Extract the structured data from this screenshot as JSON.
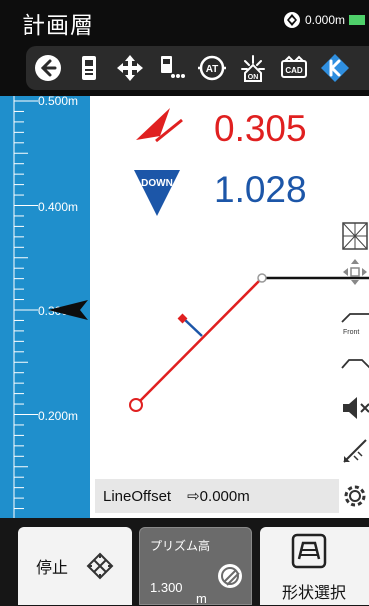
{
  "header": {
    "title": "計画層",
    "status_value": "0.000m"
  },
  "toolbar": {
    "icons": [
      "back-icon",
      "device-icon",
      "move-icon",
      "prism-settings-icon",
      "at-icon",
      "on-icon",
      "cad-icon",
      "k-logo-icon"
    ],
    "labels": {
      "at": "AT",
      "on": "ON",
      "cad": "CAD"
    }
  },
  "scale": {
    "labels": [
      "0.500m",
      "0.400m",
      "0.300m",
      "0.200m"
    ]
  },
  "readouts": {
    "horizontal": "0.305",
    "vertical": "1.028",
    "down_badge": "DOWN"
  },
  "side_tools": [
    "view-grid-icon",
    "pan-icon",
    "front-view-icon",
    "profile-view-icon",
    "mute-icon",
    "measure-edit-icon",
    "settings-gear-icon"
  ],
  "front_label": "Front",
  "info": {
    "label": "LineOffset",
    "value": "⇨0.000m"
  },
  "bottom": {
    "stop_label": "停止",
    "prism_title": "プリズム高",
    "prism_value": "1.300",
    "prism_unit": "m",
    "shape_label": "形状選択"
  },
  "colors": {
    "scale_bg": "#1f8fcc",
    "design_line": "#e02020",
    "readout_red": "#e02020",
    "readout_blue": "#1c56a8"
  }
}
